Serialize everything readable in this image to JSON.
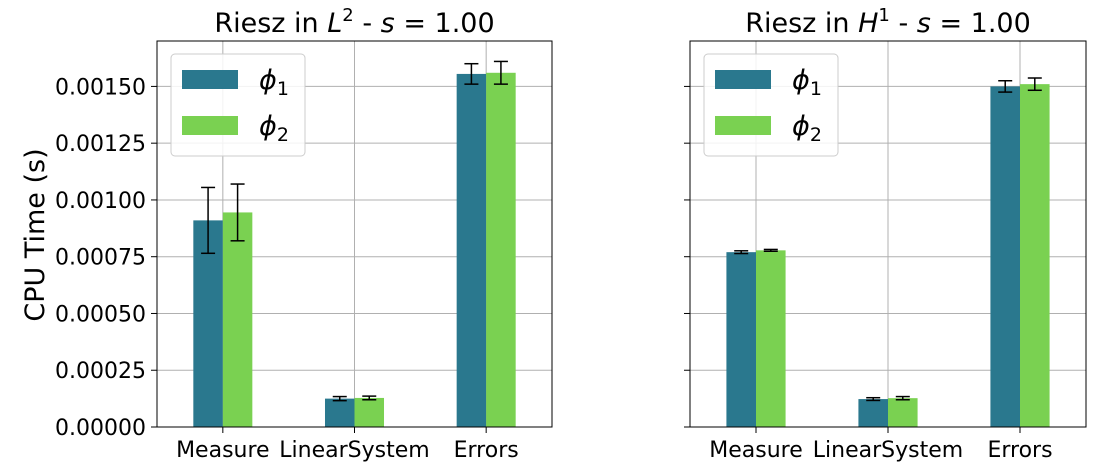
{
  "figure": {
    "ylabel": "CPU Time (s)"
  },
  "chart_data": [
    {
      "type": "bar",
      "title": "Riesz in L² - s = 1.00",
      "title_parts": {
        "prefix": "Riesz in ",
        "italic": "L",
        "sup": "2",
        "mid": " - ",
        "s": "s",
        "suffix": " = 1.00"
      },
      "xlabel": "",
      "ylabel": "CPU Time (s)",
      "categories": [
        "Measure",
        "LinearSystem",
        "Errors"
      ],
      "series": [
        {
          "name": "φ1",
          "symbol": "ϕ",
          "sub": "1",
          "color": "#2a788e",
          "values": [
            0.00091,
            0.000125,
            0.001555
          ],
          "errors": [
            0.000145,
            9e-06,
            4.5e-05
          ]
        },
        {
          "name": "φ2",
          "symbol": "ϕ",
          "sub": "2",
          "color": "#7ad151",
          "values": [
            0.000945,
            0.000128,
            0.00156
          ],
          "errors": [
            0.000125,
            8e-06,
            5e-05
          ]
        }
      ],
      "ylim": [
        0,
        0.0017
      ],
      "yticks": [
        "0.00000",
        "0.00025",
        "0.00050",
        "0.00075",
        "0.00100",
        "0.00125",
        "0.00150"
      ],
      "grid": true,
      "legend": "top-left",
      "show_ytick_labels": true
    },
    {
      "type": "bar",
      "title": "Riesz in H¹ - s = 1.00",
      "title_parts": {
        "prefix": "Riesz in ",
        "italic": "H",
        "sup": "1",
        "mid": " - ",
        "s": "s",
        "suffix": " = 1.00"
      },
      "xlabel": "",
      "ylabel": "",
      "categories": [
        "Measure",
        "LinearSystem",
        "Errors"
      ],
      "series": [
        {
          "name": "φ1",
          "symbol": "ϕ",
          "sub": "1",
          "color": "#2a788e",
          "values": [
            0.00077,
            0.000123,
            0.0015
          ],
          "errors": [
            6e-06,
            6e-06,
            2.5e-05
          ]
        },
        {
          "name": "φ2",
          "symbol": "ϕ",
          "sub": "2",
          "color": "#7ad151",
          "values": [
            0.000778,
            0.000127,
            0.00151
          ],
          "errors": [
            4e-06,
            7e-06,
            2.7e-05
          ]
        }
      ],
      "ylim": [
        0,
        0.0017
      ],
      "yticks": [
        "0.00000",
        "0.00025",
        "0.00050",
        "0.00075",
        "0.00100",
        "0.00125",
        "0.00150"
      ],
      "grid": true,
      "legend": "top-left",
      "show_ytick_labels": false
    }
  ]
}
